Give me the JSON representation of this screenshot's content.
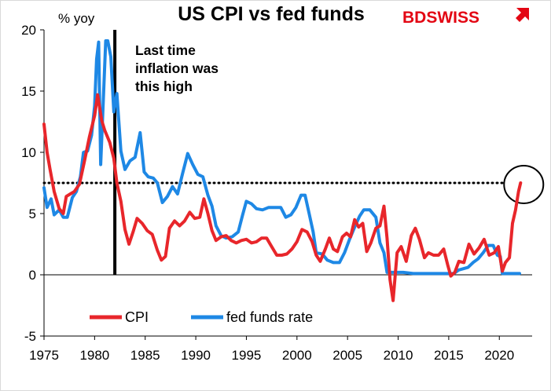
{
  "chart_data": {
    "type": "line",
    "title": "US CPI vs fed funds",
    "ylabel": "% yoy",
    "xlabel": "",
    "xlim": [
      1975,
      2022
    ],
    "ylim": [
      -5,
      20
    ],
    "xticks": [
      "1975",
      "1980",
      "1985",
      "1990",
      "1995",
      "2000",
      "2005",
      "2010",
      "2015",
      "2020"
    ],
    "yticks": [
      "20",
      "15",
      "10",
      "5",
      "0",
      "-5"
    ],
    "annotation": "Last time inflation was this high",
    "annotation_lines": [
      "Last time",
      "inflation was",
      "this high"
    ],
    "reference_line": {
      "year": 1982,
      "label_style": "vertical"
    },
    "threshold": 7.5,
    "legend_position": "bottom-left",
    "series": [
      {
        "name": "CPI",
        "color": "#e8262b",
        "points": [
          [
            1975.0,
            12.3
          ],
          [
            1975.3,
            10.0
          ],
          [
            1975.6,
            8.6
          ],
          [
            1976.0,
            6.8
          ],
          [
            1976.5,
            5.4
          ],
          [
            1976.9,
            5.0
          ],
          [
            1977.2,
            6.4
          ],
          [
            1977.6,
            6.6
          ],
          [
            1978.0,
            6.8
          ],
          [
            1978.5,
            7.4
          ],
          [
            1979.0,
            9.3
          ],
          [
            1979.5,
            11.3
          ],
          [
            1980.0,
            13.0
          ],
          [
            1980.3,
            14.7
          ],
          [
            1980.7,
            12.6
          ],
          [
            1981.0,
            11.8
          ],
          [
            1981.5,
            10.8
          ],
          [
            1981.9,
            9.5
          ],
          [
            1982.2,
            7.5
          ],
          [
            1982.6,
            6.0
          ],
          [
            1983.0,
            3.7
          ],
          [
            1983.4,
            2.5
          ],
          [
            1983.8,
            3.5
          ],
          [
            1984.2,
            4.6
          ],
          [
            1984.7,
            4.2
          ],
          [
            1985.2,
            3.6
          ],
          [
            1985.7,
            3.3
          ],
          [
            1986.2,
            2.0
          ],
          [
            1986.6,
            1.2
          ],
          [
            1987.0,
            1.5
          ],
          [
            1987.4,
            3.8
          ],
          [
            1987.9,
            4.4
          ],
          [
            1988.4,
            4.0
          ],
          [
            1988.9,
            4.4
          ],
          [
            1989.4,
            5.1
          ],
          [
            1989.9,
            4.6
          ],
          [
            1990.4,
            4.7
          ],
          [
            1990.8,
            6.2
          ],
          [
            1991.2,
            5.0
          ],
          [
            1991.6,
            3.6
          ],
          [
            1992.0,
            2.8
          ],
          [
            1992.5,
            3.1
          ],
          [
            1993.0,
            3.2
          ],
          [
            1993.5,
            2.8
          ],
          [
            1994.0,
            2.6
          ],
          [
            1994.5,
            2.8
          ],
          [
            1995.0,
            2.9
          ],
          [
            1995.5,
            2.6
          ],
          [
            1996.0,
            2.7
          ],
          [
            1996.5,
            3.0
          ],
          [
            1997.0,
            3.0
          ],
          [
            1997.5,
            2.3
          ],
          [
            1998.0,
            1.6
          ],
          [
            1998.5,
            1.6
          ],
          [
            1999.0,
            1.7
          ],
          [
            1999.5,
            2.1
          ],
          [
            2000.0,
            2.7
          ],
          [
            2000.5,
            3.7
          ],
          [
            2001.0,
            3.5
          ],
          [
            2001.5,
            2.7
          ],
          [
            2001.9,
            1.6
          ],
          [
            2002.3,
            1.1
          ],
          [
            2002.8,
            2.1
          ],
          [
            2003.2,
            3.0
          ],
          [
            2003.6,
            2.1
          ],
          [
            2004.0,
            1.9
          ],
          [
            2004.5,
            3.1
          ],
          [
            2004.9,
            3.4
          ],
          [
            2005.3,
            3.1
          ],
          [
            2005.7,
            4.5
          ],
          [
            2006.1,
            3.9
          ],
          [
            2006.5,
            4.2
          ],
          [
            2006.9,
            1.9
          ],
          [
            2007.3,
            2.6
          ],
          [
            2007.8,
            3.8
          ],
          [
            2008.2,
            4.0
          ],
          [
            2008.6,
            5.6
          ],
          [
            2008.9,
            3.0
          ],
          [
            2009.2,
            -0.4
          ],
          [
            2009.5,
            -2.1
          ],
          [
            2009.9,
            1.8
          ],
          [
            2010.3,
            2.3
          ],
          [
            2010.8,
            1.1
          ],
          [
            2011.3,
            3.2
          ],
          [
            2011.7,
            3.8
          ],
          [
            2012.1,
            2.9
          ],
          [
            2012.6,
            1.4
          ],
          [
            2013.0,
            1.8
          ],
          [
            2013.5,
            1.6
          ],
          [
            2014.0,
            1.6
          ],
          [
            2014.5,
            2.1
          ],
          [
            2014.9,
            0.8
          ],
          [
            2015.2,
            -0.1
          ],
          [
            2015.6,
            0.2
          ],
          [
            2016.0,
            1.1
          ],
          [
            2016.5,
            1.0
          ],
          [
            2017.0,
            2.5
          ],
          [
            2017.5,
            1.7
          ],
          [
            2018.0,
            2.2
          ],
          [
            2018.5,
            2.9
          ],
          [
            2019.0,
            1.6
          ],
          [
            2019.5,
            1.8
          ],
          [
            2019.9,
            2.3
          ],
          [
            2020.3,
            0.3
          ],
          [
            2020.6,
            1.0
          ],
          [
            2021.0,
            1.4
          ],
          [
            2021.3,
            4.2
          ],
          [
            2021.6,
            5.3
          ],
          [
            2021.9,
            6.8
          ],
          [
            2022.1,
            7.5
          ]
        ]
      },
      {
        "name": "fed funds rate",
        "color": "#1e88e5",
        "points": [
          [
            1975.0,
            7.1
          ],
          [
            1975.3,
            5.5
          ],
          [
            1975.7,
            6.2
          ],
          [
            1976.0,
            4.9
          ],
          [
            1976.5,
            5.3
          ],
          [
            1976.9,
            4.7
          ],
          [
            1977.3,
            4.7
          ],
          [
            1977.8,
            6.3
          ],
          [
            1978.2,
            6.8
          ],
          [
            1978.6,
            8.0
          ],
          [
            1978.9,
            10.0
          ],
          [
            1979.3,
            10.1
          ],
          [
            1979.7,
            11.4
          ],
          [
            1980.0,
            13.8
          ],
          [
            1980.2,
            17.6
          ],
          [
            1980.4,
            19.0
          ],
          [
            1980.6,
            9.0
          ],
          [
            1980.9,
            15.0
          ],
          [
            1981.1,
            19.1
          ],
          [
            1981.3,
            19.1
          ],
          [
            1981.6,
            17.8
          ],
          [
            1981.9,
            13.3
          ],
          [
            1982.2,
            14.8
          ],
          [
            1982.6,
            10.1
          ],
          [
            1983.0,
            8.6
          ],
          [
            1983.5,
            9.3
          ],
          [
            1984.0,
            9.6
          ],
          [
            1984.5,
            11.6
          ],
          [
            1984.9,
            8.4
          ],
          [
            1985.3,
            8.0
          ],
          [
            1985.8,
            7.9
          ],
          [
            1986.2,
            7.5
          ],
          [
            1986.7,
            5.9
          ],
          [
            1987.2,
            6.4
          ],
          [
            1987.7,
            7.2
          ],
          [
            1988.2,
            6.6
          ],
          [
            1988.7,
            8.3
          ],
          [
            1989.2,
            9.9
          ],
          [
            1989.7,
            9.0
          ],
          [
            1990.2,
            8.2
          ],
          [
            1990.7,
            8.0
          ],
          [
            1991.2,
            6.5
          ],
          [
            1991.6,
            5.6
          ],
          [
            1992.0,
            4.0
          ],
          [
            1992.5,
            3.2
          ],
          [
            1993.0,
            3.0
          ],
          [
            1993.6,
            3.1
          ],
          [
            1994.2,
            3.5
          ],
          [
            1994.6,
            4.8
          ],
          [
            1995.0,
            6.0
          ],
          [
            1995.5,
            5.8
          ],
          [
            1996.0,
            5.4
          ],
          [
            1996.6,
            5.3
          ],
          [
            1997.2,
            5.5
          ],
          [
            1997.8,
            5.5
          ],
          [
            1998.4,
            5.5
          ],
          [
            1998.9,
            4.7
          ],
          [
            1999.4,
            4.9
          ],
          [
            1999.9,
            5.5
          ],
          [
            2000.4,
            6.5
          ],
          [
            2000.8,
            6.5
          ],
          [
            2001.2,
            5.0
          ],
          [
            2001.6,
            3.5
          ],
          [
            2001.9,
            1.8
          ],
          [
            2002.5,
            1.7
          ],
          [
            2003.0,
            1.2
          ],
          [
            2003.6,
            1.0
          ],
          [
            2004.2,
            1.0
          ],
          [
            2004.7,
            1.8
          ],
          [
            2005.2,
            2.9
          ],
          [
            2005.7,
            3.9
          ],
          [
            2006.2,
            4.8
          ],
          [
            2006.6,
            5.3
          ],
          [
            2007.2,
            5.3
          ],
          [
            2007.8,
            4.7
          ],
          [
            2008.2,
            2.6
          ],
          [
            2008.6,
            1.8
          ],
          [
            2008.9,
            0.2
          ],
          [
            2009.5,
            0.2
          ],
          [
            2010.5,
            0.2
          ],
          [
            2011.5,
            0.1
          ],
          [
            2012.5,
            0.1
          ],
          [
            2013.5,
            0.1
          ],
          [
            2014.5,
            0.1
          ],
          [
            2015.5,
            0.1
          ],
          [
            2016.0,
            0.4
          ],
          [
            2016.9,
            0.6
          ],
          [
            2017.4,
            1.0
          ],
          [
            2017.9,
            1.3
          ],
          [
            2018.4,
            1.8
          ],
          [
            2018.9,
            2.4
          ],
          [
            2019.4,
            2.4
          ],
          [
            2019.8,
            1.6
          ],
          [
            2020.1,
            1.5
          ],
          [
            2020.3,
            0.1
          ],
          [
            2021.0,
            0.1
          ],
          [
            2022.0,
            0.1
          ]
        ]
      }
    ]
  },
  "logo": {
    "brand": "BDSWISS"
  }
}
